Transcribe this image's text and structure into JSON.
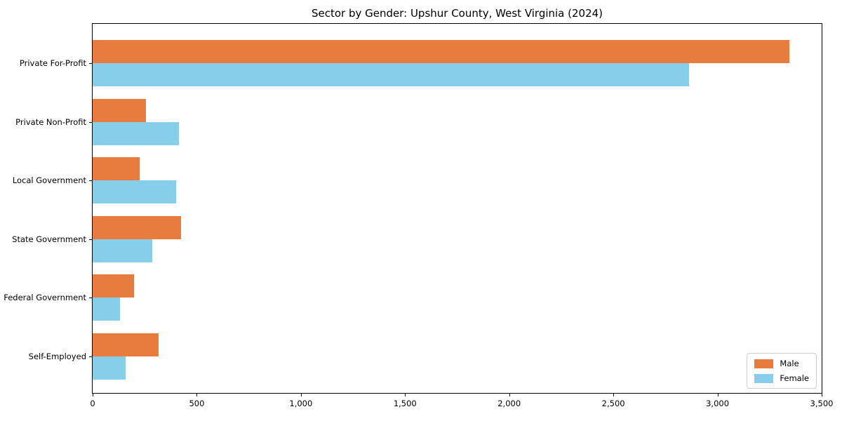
{
  "chart_data": {
    "type": "bar",
    "orientation": "horizontal",
    "title": "Sector by Gender: Upshur County, West Virginia (2024)",
    "categories": [
      "Private For-Profit",
      "Private Non-Profit",
      "Local Government",
      "State Government",
      "Federal Government",
      "Self-Employed"
    ],
    "series": [
      {
        "name": "Male",
        "color": "#e87c3e",
        "values": [
          3345,
          255,
          225,
          425,
          200,
          315
        ]
      },
      {
        "name": "Female",
        "color": "#87ceeb",
        "values": [
          2865,
          415,
          400,
          285,
          130,
          160
        ]
      }
    ],
    "xlim": [
      0,
      3500
    ],
    "x_ticks": [
      0,
      500,
      1000,
      1500,
      2000,
      2500,
      3000,
      3500
    ],
    "x_tick_labels": [
      "0",
      "500",
      "1,000",
      "1,500",
      "2,000",
      "2,500",
      "3,000",
      "3,500"
    ],
    "xlabel": "",
    "ylabel": "",
    "grid": false,
    "legend": {
      "position": "lower right"
    }
  }
}
